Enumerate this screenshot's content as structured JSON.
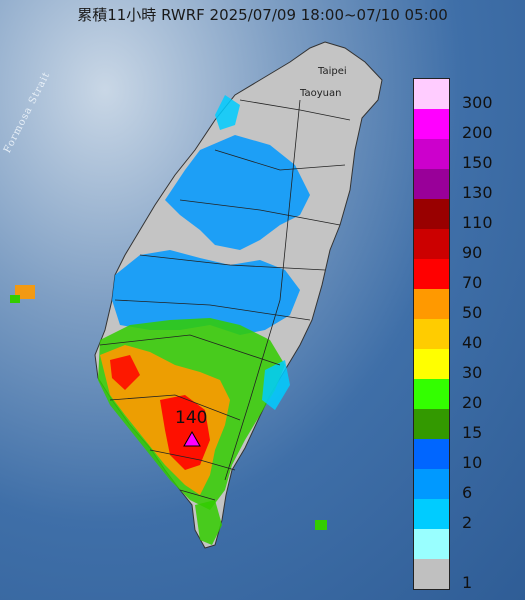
{
  "title": "累積11小時 RWRF 2025/07/09 18:00~07/10 05:00",
  "labels": {
    "strait": "Formosa Strait",
    "taipei": "Taipei",
    "taoyuan": "Taoyuan",
    "peak_value": "140"
  },
  "legend": [
    {
      "label": "300",
      "color": "#ffccff"
    },
    {
      "label": "200",
      "color": "#ff00ff"
    },
    {
      "label": "150",
      "color": "#cc00cc"
    },
    {
      "label": "130",
      "color": "#990099"
    },
    {
      "label": "110",
      "color": "#990000"
    },
    {
      "label": "90",
      "color": "#cc0000"
    },
    {
      "label": "70",
      "color": "#ff0000"
    },
    {
      "label": "50",
      "color": "#ff9900"
    },
    {
      "label": "40",
      "color": "#ffcc00"
    },
    {
      "label": "30",
      "color": "#ffff00"
    },
    {
      "label": "20",
      "color": "#33ff00"
    },
    {
      "label": "15",
      "color": "#339900"
    },
    {
      "label": "10",
      "color": "#0066ff"
    },
    {
      "label": "6",
      "color": "#0099ff"
    },
    {
      "label": "2",
      "color": "#00ccff"
    },
    {
      "label": "",
      "color": "#99ffff"
    },
    {
      "label": "1",
      "color": "#c0c0c0"
    }
  ]
}
